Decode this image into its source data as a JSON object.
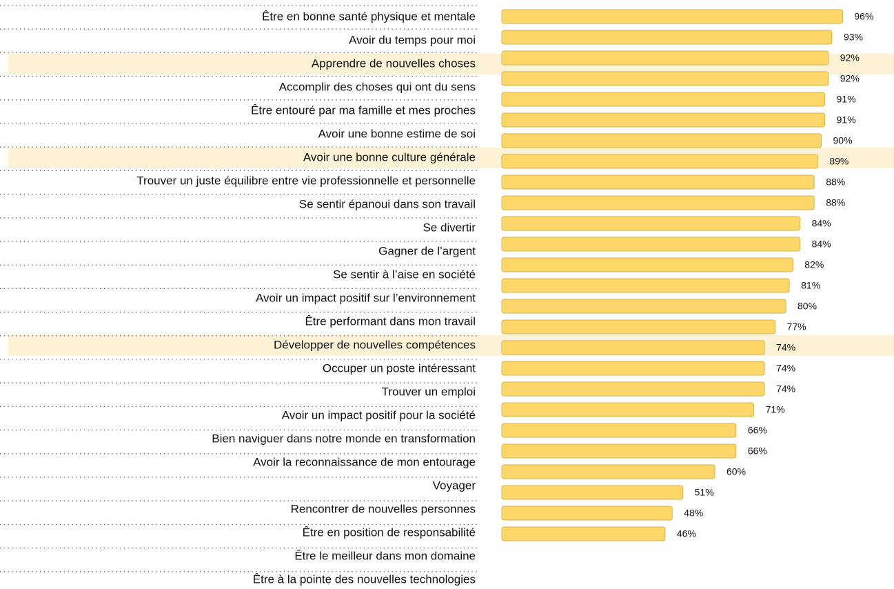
{
  "chart_data": {
    "type": "bar",
    "orientation": "horizontal",
    "categories": [
      "Être en bonne santé physique et mentale",
      "Avoir du temps pour moi",
      "Apprendre de nouvelles choses",
      "Accomplir des choses qui ont du sens",
      "Être entouré par ma famille et mes proches",
      "Avoir une bonne estime de soi",
      "Avoir une bonne culture générale",
      "Trouver un juste équilibre entre vie professionnelle et personnelle",
      "Se sentir épanoui dans son travail",
      "Se divertir",
      "Gagner de l’argent",
      "Se sentir à l’aise en société",
      "Avoir un impact positif sur l’environnement",
      "Être performant dans mon travail",
      "Développer de nouvelles compétences",
      "Occuper un poste intéressant",
      "Trouver un emploi",
      "Avoir un impact positif pour la société",
      "Bien naviguer dans notre monde en transformation",
      "Avoir la reconnaissance de mon entourage",
      "Voyager",
      "Rencontrer de nouvelles personnes",
      "Être en position de responsabilité",
      "Être le meilleur dans mon domaine",
      "Être à la pointe des nouvelles technologies",
      null
    ],
    "values": [
      96,
      93,
      92,
      92,
      91,
      91,
      90,
      89,
      88,
      88,
      84,
      84,
      82,
      81,
      80,
      77,
      74,
      74,
      74,
      71,
      66,
      66,
      60,
      51,
      48,
      46
    ],
    "value_labels": [
      "96%",
      "93%",
      "92%",
      "92%",
      "91%",
      "91%",
      "90%",
      "89%",
      "88%",
      "88%",
      "84%",
      "84%",
      "82%",
      "81%",
      "80%",
      "77%",
      "74%",
      "74%",
      "74%",
      "71%",
      "66%",
      "66%",
      "60%",
      "51%",
      "48%",
      "46%"
    ],
    "xlim": [
      0,
      100
    ],
    "color": "#fdd76a",
    "highlighted": [
      2,
      6,
      14
    ],
    "highlight_color": "#fdf2d5"
  }
}
